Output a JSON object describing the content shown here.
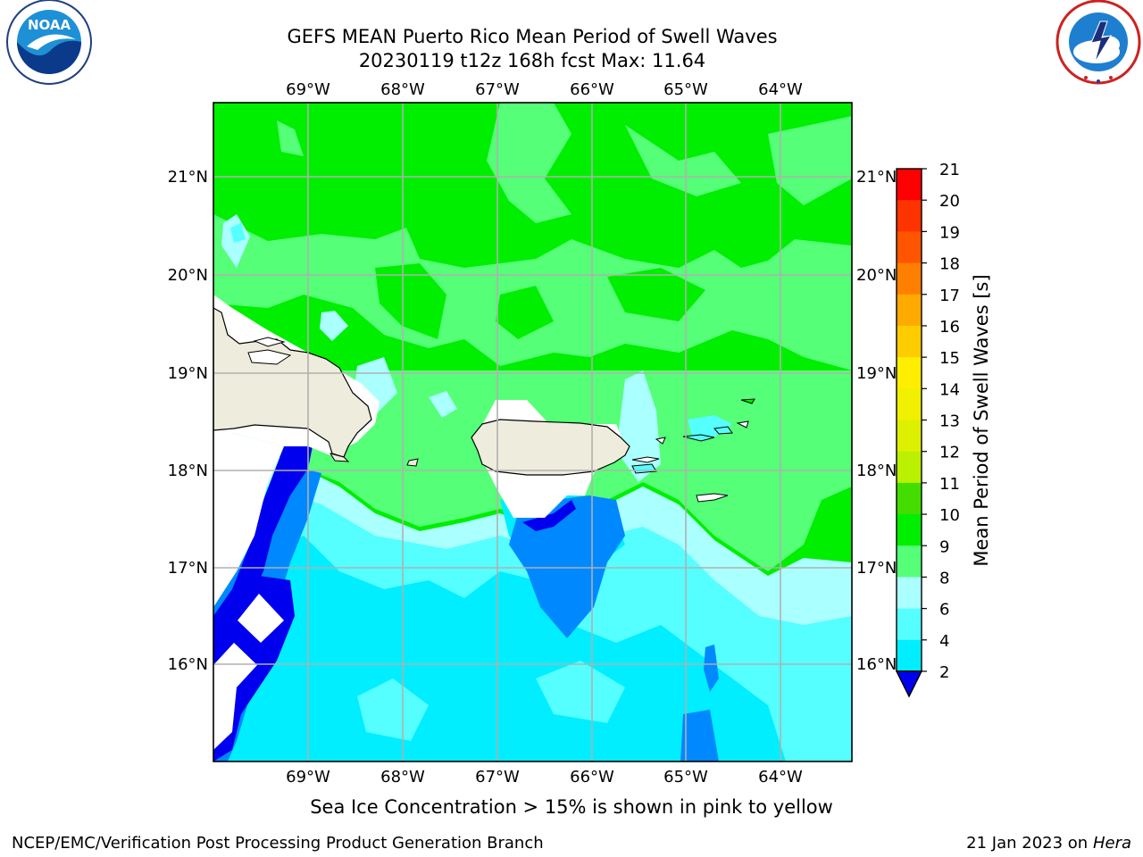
{
  "header": {
    "title_line1": "GEFS MEAN Puerto Rico Mean Period of Swell Waves",
    "title_line2": "20230119 t12z 168h fcst   Max: 11.64"
  },
  "logos": {
    "left": {
      "icon": "noaa-logo",
      "text": "NOAA",
      "ring_text": "NATIONAL OCEANIC AND ATMOSPHERIC ADMINISTRATION · U.S. DEPARTMENT OF COMMERCE"
    },
    "right": {
      "icon": "nws-logo",
      "ring_text": "NATIONAL WEATHER SERVICE"
    }
  },
  "map": {
    "lon_labels": [
      "69°W",
      "68°W",
      "67°W",
      "66°W",
      "65°W",
      "64°W"
    ],
    "lat_labels": [
      "21°N",
      "20°N",
      "19°N",
      "18°N",
      "17°N",
      "16°N"
    ],
    "colors": {
      "land": "#eeecdc",
      "grid": "#b0b0b0"
    }
  },
  "colorbar": {
    "label": "Mean Period of Swell Waves [s]",
    "ticks": [
      "21",
      "20",
      "19",
      "18",
      "17",
      "16",
      "15",
      "14",
      "13",
      "12",
      "11",
      "10",
      "9",
      "8",
      "6",
      "4",
      "2"
    ],
    "colors": [
      "#ff0000",
      "#ff3300",
      "#ff5500",
      "#ff7f00",
      "#ffaa00",
      "#ffcc00",
      "#ffee00",
      "#f0f000",
      "#ddf000",
      "#bbf000",
      "#44dd00",
      "#00ee00",
      "#55ff77",
      "#aaffff",
      "#55ffff",
      "#00eeff",
      "#0088ff",
      "#0000ee"
    ]
  },
  "footer": {
    "note": "Sea Ice Concentration > 15% is shown in pink to yellow",
    "left": "NCEP/EMC/Verification Post Processing Product Generation Branch",
    "right_date": "21 Jan 2023 on ",
    "right_host": "Hera"
  }
}
